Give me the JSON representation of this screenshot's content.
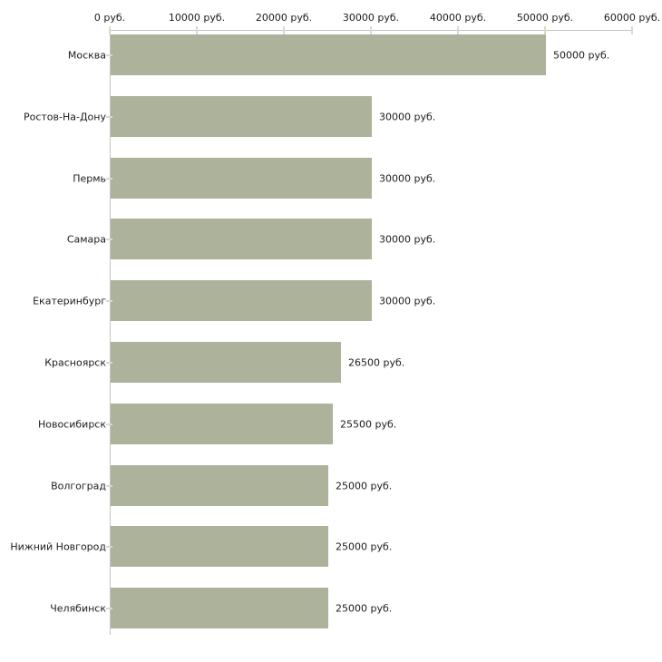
{
  "chart_data": {
    "type": "bar",
    "orientation": "horizontal",
    "title": "",
    "xlabel": "",
    "ylabel": "",
    "xlim": [
      0,
      60000
    ],
    "grid": false,
    "legend": null,
    "x_ticks": [
      {
        "value": 0,
        "label": "0 руб."
      },
      {
        "value": 10000,
        "label": "10000 руб."
      },
      {
        "value": 20000,
        "label": "20000 руб."
      },
      {
        "value": 30000,
        "label": "30000 руб."
      },
      {
        "value": 40000,
        "label": "40000 руб."
      },
      {
        "value": 50000,
        "label": "50000 руб."
      },
      {
        "value": 60000,
        "label": "60000 руб."
      }
    ],
    "bars": [
      {
        "category": "Москва",
        "value": 50000,
        "label": "50000 руб."
      },
      {
        "category": "Ростов-На-Дону",
        "value": 30000,
        "label": "30000 руб."
      },
      {
        "category": "Пермь",
        "value": 30000,
        "label": "30000 руб."
      },
      {
        "category": "Самара",
        "value": 30000,
        "label": "30000 руб."
      },
      {
        "category": "Екатеринбург",
        "value": 30000,
        "label": "30000 руб."
      },
      {
        "category": "Красноярск",
        "value": 26500,
        "label": "26500 руб."
      },
      {
        "category": "Новосибирск",
        "value": 25500,
        "label": "25500 руб."
      },
      {
        "category": "Волгоград",
        "value": 25000,
        "label": "25000 руб."
      },
      {
        "category": "Нижний Новгород",
        "value": 25000,
        "label": "25000 руб."
      },
      {
        "category": "Челябинск",
        "value": 25000,
        "label": "25000 руб."
      }
    ],
    "colors": {
      "bar_fill": "#adb29b",
      "axis_line": "#c3c3c3",
      "tick_mark": "#d9dcc4",
      "text": "#1c1c1c",
      "background": "#ffffff"
    }
  }
}
